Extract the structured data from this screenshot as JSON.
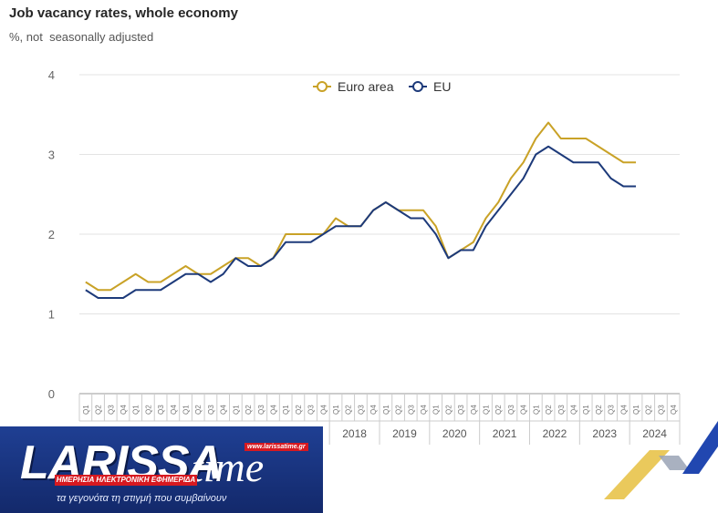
{
  "header": {
    "title": "Job vacancy rates, whole economy",
    "subtitle": "%, not  seasonally adjusted"
  },
  "chart_data": {
    "type": "line",
    "title": "Job vacancy rates, whole economy",
    "subtitle": "%, not  seasonally adjusted",
    "ylim": [
      0,
      4
    ],
    "yticks": [
      0,
      1,
      2,
      3,
      4
    ],
    "grid": true,
    "legend": "top-center",
    "quarter_labels": [
      "Q1",
      "Q2",
      "Q3",
      "Q4"
    ],
    "year_labels": [
      "2018",
      "2019",
      "2020",
      "2021",
      "2022",
      "2023",
      "2024"
    ],
    "year_start_index": 20,
    "num_quarters": 48,
    "series": [
      {
        "name": "Euro area",
        "color": "#c9a227",
        "values": [
          1.4,
          1.3,
          1.3,
          1.4,
          1.5,
          1.4,
          1.4,
          1.5,
          1.6,
          1.5,
          1.5,
          1.6,
          1.7,
          1.7,
          1.6,
          1.7,
          2.0,
          2.0,
          2.0,
          2.0,
          2.2,
          2.1,
          2.1,
          2.3,
          2.4,
          2.3,
          2.3,
          2.3,
          2.1,
          1.7,
          1.8,
          1.9,
          2.2,
          2.4,
          2.7,
          2.9,
          3.2,
          3.4,
          3.2,
          3.2,
          3.2,
          3.1,
          3.0,
          2.9,
          2.9,
          null,
          null,
          null
        ]
      },
      {
        "name": "EU",
        "color": "#1d3a7a",
        "values": [
          1.3,
          1.2,
          1.2,
          1.2,
          1.3,
          1.3,
          1.3,
          1.4,
          1.5,
          1.5,
          1.4,
          1.5,
          1.7,
          1.6,
          1.6,
          1.7,
          1.9,
          1.9,
          1.9,
          2.0,
          2.1,
          2.1,
          2.1,
          2.3,
          2.4,
          2.3,
          2.2,
          2.2,
          2.0,
          1.7,
          1.8,
          1.8,
          2.1,
          2.3,
          2.5,
          2.7,
          3.0,
          3.1,
          3.0,
          2.9,
          2.9,
          2.9,
          2.7,
          2.6,
          2.6,
          null,
          null,
          null
        ]
      }
    ]
  },
  "logo": {
    "word1": "LARISSA",
    "word2": "time",
    "url": "www.larissatime.gr",
    "strip": "ΗΜΕΡΗΣΙΑ ΗΛΕΚΤΡΟΝΙΚΗ ΕΦΗΜΕΡΙΔΑ",
    "tagline": "τα γεγονότα τη στιγμή που συμβαίνουν"
  }
}
